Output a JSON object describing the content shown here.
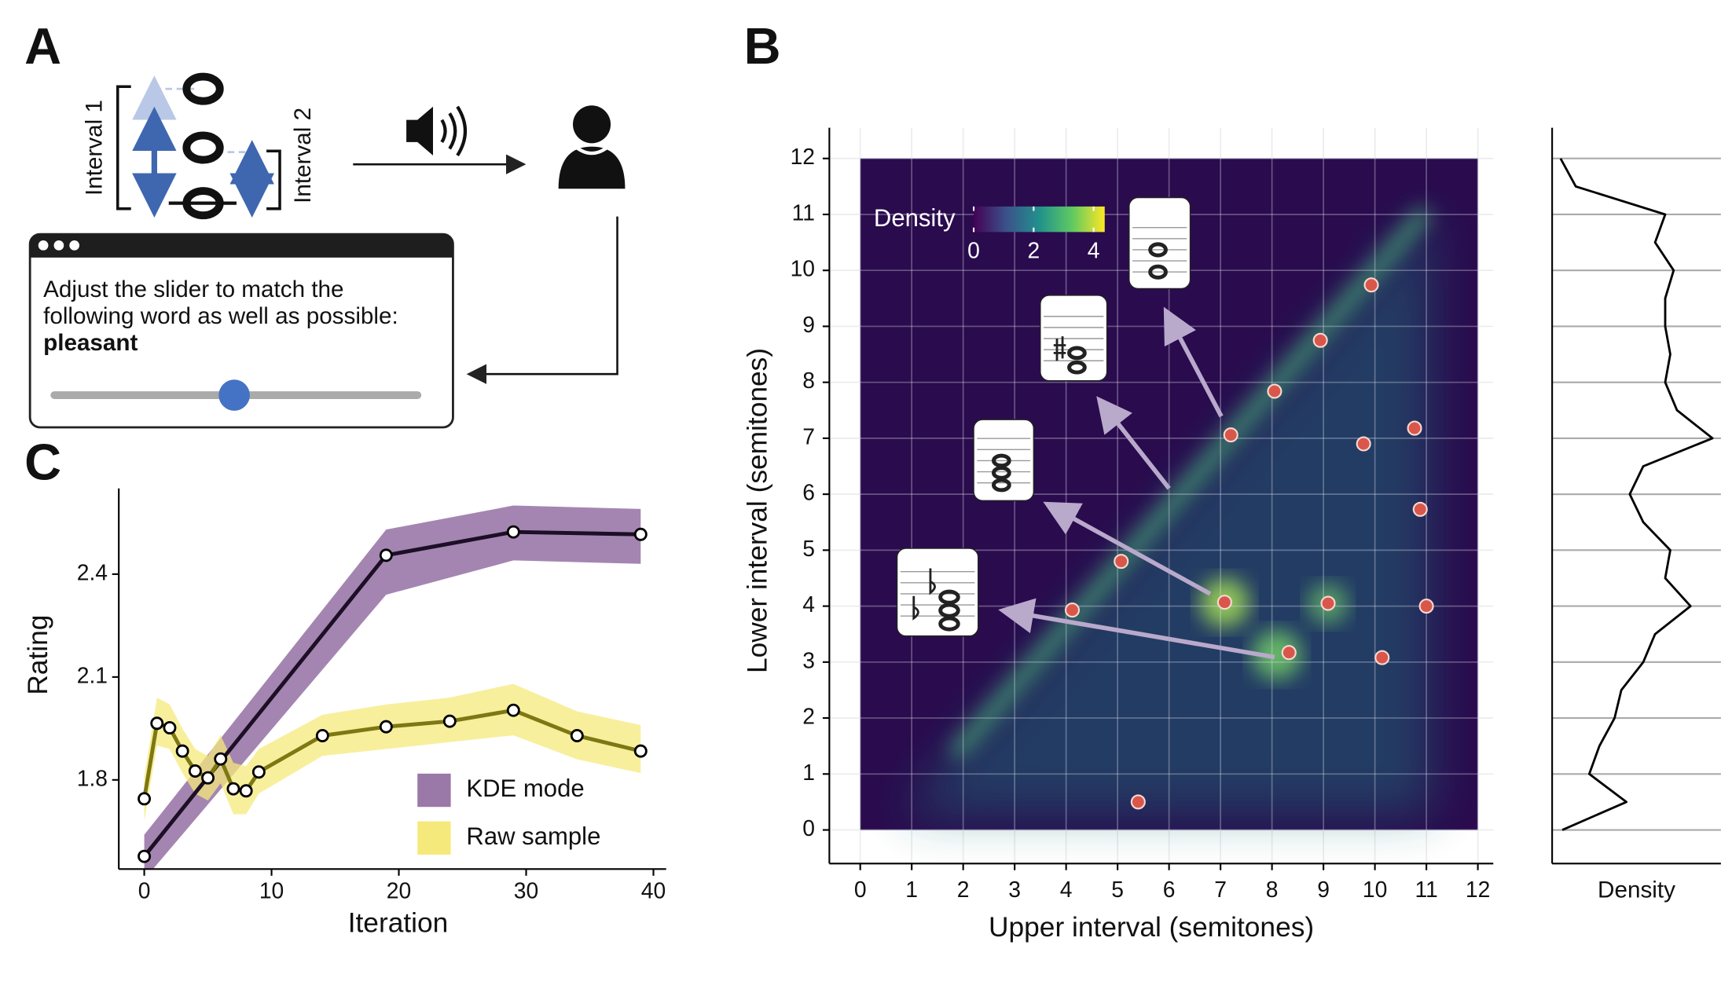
{
  "panel_labels": [
    "A",
    "B",
    "C"
  ],
  "task": {
    "interval_labels": [
      "Interval 1",
      "Interval 2"
    ],
    "prompt_lines": [
      "Adjust the slider to match the",
      "following word as well as possible:"
    ],
    "word": "pleasant"
  },
  "chart_data": [
    {
      "type": "line",
      "xlabel": "Iteration",
      "ylabel": "Rating",
      "xlim": [
        -2,
        41
      ],
      "ylim": [
        1.54,
        2.65
      ],
      "xticks": [
        0,
        10,
        20,
        30,
        40
      ],
      "yticks": [
        1.8,
        2.1,
        2.4
      ],
      "legend": "lower right",
      "series": [
        {
          "name": "KDE mode",
          "color": "#1c0f26",
          "band_color": "#9a78a8",
          "x": [
            0,
            19,
            29,
            39
          ],
          "values": [
            1.577,
            2.455,
            2.523,
            2.516
          ],
          "lower": [
            1.51,
            2.34,
            2.44,
            2.43
          ],
          "upper": [
            1.64,
            2.53,
            2.6,
            2.59
          ]
        },
        {
          "name": "Raw sample",
          "color": "#7d7812",
          "band_color": "#f6e97c",
          "x": [
            0,
            1,
            2,
            3,
            4,
            5,
            6,
            7,
            8,
            9,
            14,
            19,
            24,
            29,
            34,
            39
          ],
          "values": [
            1.745,
            1.965,
            1.952,
            1.884,
            1.826,
            1.806,
            1.861,
            1.774,
            1.768,
            1.823,
            1.929,
            1.955,
            1.971,
            2.003,
            1.929,
            1.884
          ],
          "lower": [
            1.68,
            1.9,
            1.89,
            1.82,
            1.76,
            1.74,
            1.79,
            1.7,
            1.7,
            1.76,
            1.87,
            1.89,
            1.91,
            1.93,
            1.86,
            1.82
          ],
          "upper": [
            1.81,
            2.04,
            2.02,
            1.95,
            1.89,
            1.87,
            1.93,
            1.85,
            1.84,
            1.89,
            1.99,
            2.02,
            2.04,
            2.08,
            2.0,
            1.96
          ]
        }
      ]
    },
    {
      "type": "scatter",
      "xlabel": "Upper interval (semitones)",
      "ylabel": "Lower interval (semitones)",
      "xlim": [
        -0.6,
        12.3
      ],
      "ylim": [
        -0.6,
        12.55
      ],
      "xticks": [
        0,
        1,
        2,
        3,
        4,
        5,
        6,
        7,
        8,
        9,
        10,
        11,
        12
      ],
      "yticks": [
        0,
        1,
        2,
        3,
        4,
        5,
        6,
        7,
        8,
        9,
        10,
        11,
        12
      ],
      "grid": true,
      "background": "#2a0b4e",
      "color": "#d9574a",
      "x": [
        5.4,
        4.12,
        5.07,
        7.08,
        8.33,
        7.2,
        8.05,
        8.94,
        9.93,
        9.78,
        10.77,
        10.88,
        9.09,
        10.14,
        11.0
      ],
      "values": [
        0.5,
        3.93,
        4.8,
        4.07,
        3.17,
        7.06,
        7.84,
        8.75,
        9.74,
        6.9,
        7.18,
        5.73,
        4.05,
        3.08,
        4.0
      ],
      "colorbar": {
        "label": "Density",
        "lim": [
          0,
          4.37
        ],
        "ticks": [
          0,
          2,
          4
        ]
      }
    },
    {
      "type": "density",
      "xlabel": "Density",
      "xlim": [
        0,
        1
      ],
      "ylim": [
        -0.6,
        12.55
      ],
      "yticks": [
        0,
        1,
        2,
        3,
        4,
        5,
        6,
        7,
        8,
        9,
        10,
        11,
        12
      ],
      "grid": true,
      "color": "#000000",
      "y": [
        0,
        0.5,
        1,
        1.5,
        2,
        2.5,
        3,
        3.5,
        4,
        4.5,
        5,
        5.5,
        6,
        6.5,
        7,
        7.5,
        8,
        8.5,
        9,
        9.5,
        10,
        10.5,
        11,
        11.5,
        12
      ],
      "values": [
        0.06,
        0.44,
        0.22,
        0.28,
        0.37,
        0.41,
        0.54,
        0.61,
        0.82,
        0.67,
        0.7,
        0.54,
        0.46,
        0.54,
        0.95,
        0.74,
        0.67,
        0.7,
        0.67,
        0.67,
        0.72,
        0.61,
        0.67,
        0.14,
        0.05
      ]
    }
  ]
}
